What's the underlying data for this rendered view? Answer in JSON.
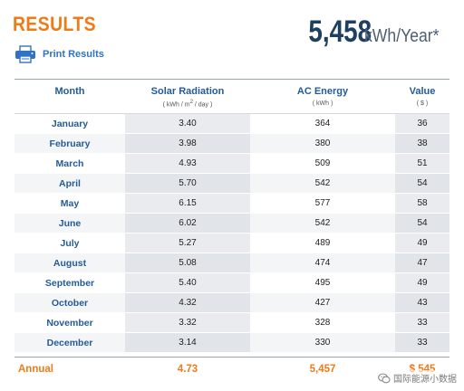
{
  "header": {
    "title": "RESULTS",
    "print_label": "Print Results",
    "total_value": "5,458",
    "total_unit": "kWh/Year*"
  },
  "table": {
    "columns": [
      {
        "label": "Month",
        "unit_prefix": "",
        "unit_sup": "",
        "unit_suffix": ""
      },
      {
        "label": "Solar Radiation",
        "unit_prefix": "( kWh / m",
        "unit_sup": "2",
        "unit_suffix": " / day )"
      },
      {
        "label": "AC Energy",
        "unit_prefix": "( kWh )",
        "unit_sup": "",
        "unit_suffix": ""
      },
      {
        "label": "Value",
        "unit_prefix": "( $ )",
        "unit_sup": "",
        "unit_suffix": ""
      }
    ],
    "rows": [
      {
        "month": "January",
        "solar": "3.40",
        "ac": "364",
        "value": "36"
      },
      {
        "month": "February",
        "solar": "3.98",
        "ac": "380",
        "value": "38"
      },
      {
        "month": "March",
        "solar": "4.93",
        "ac": "509",
        "value": "51"
      },
      {
        "month": "April",
        "solar": "5.70",
        "ac": "542",
        "value": "54"
      },
      {
        "month": "May",
        "solar": "6.15",
        "ac": "577",
        "value": "58"
      },
      {
        "month": "June",
        "solar": "6.02",
        "ac": "542",
        "value": "54"
      },
      {
        "month": "July",
        "solar": "5.27",
        "ac": "489",
        "value": "49"
      },
      {
        "month": "August",
        "solar": "5.08",
        "ac": "474",
        "value": "47"
      },
      {
        "month": "September",
        "solar": "5.40",
        "ac": "495",
        "value": "49"
      },
      {
        "month": "October",
        "solar": "4.32",
        "ac": "427",
        "value": "43"
      },
      {
        "month": "November",
        "solar": "3.32",
        "ac": "328",
        "value": "33"
      },
      {
        "month": "December",
        "solar": "3.14",
        "ac": "330",
        "value": "33"
      }
    ],
    "annual": {
      "label": "Annual",
      "solar": "4.73",
      "ac": "5,457",
      "value": "$ 545"
    }
  },
  "watermark": {
    "text": "国际能源小数据"
  },
  "colors": {
    "accent": "#f07a16",
    "link": "#2f73c6",
    "heading": "#245b97",
    "total": "#1f3f61"
  },
  "icons": {
    "print": "printer-icon",
    "watermark": "wechat-icon"
  }
}
